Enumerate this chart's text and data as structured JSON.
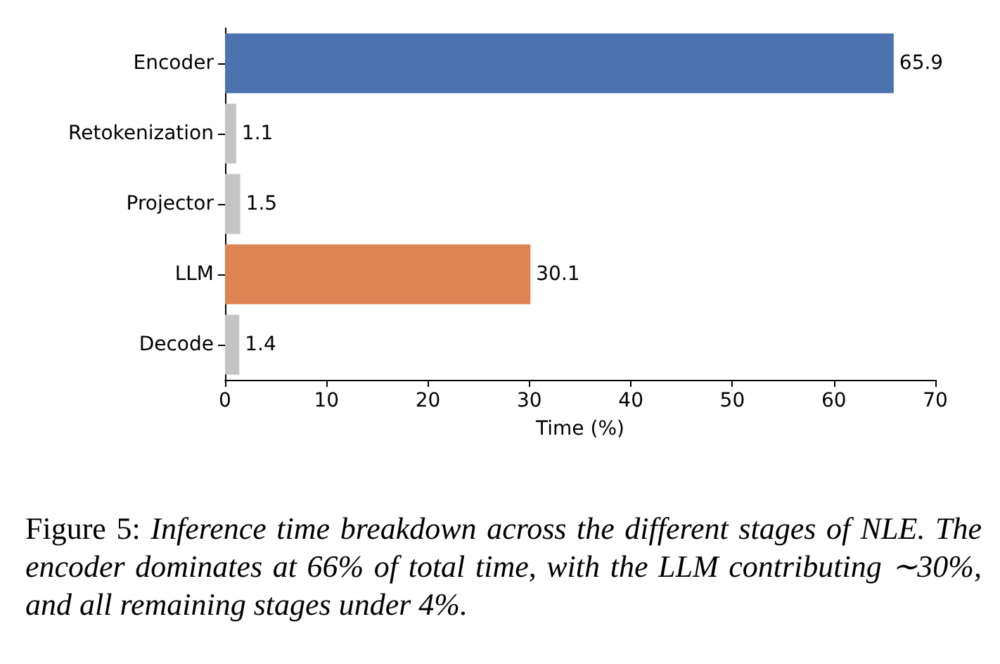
{
  "chart_data": {
    "type": "bar",
    "orientation": "horizontal",
    "categories": [
      "Encoder",
      "Retokenization",
      "Projector",
      "LLM",
      "Decode"
    ],
    "values": [
      65.9,
      1.1,
      1.5,
      30.1,
      1.4
    ],
    "colors": [
      "#4c72b0",
      "#c4c4c4",
      "#c4c4c4",
      "#dd8452",
      "#c4c4c4"
    ],
    "xlim": [
      0,
      70
    ],
    "xticks": [
      0,
      10,
      20,
      30,
      40,
      50,
      60,
      70
    ],
    "xlabel": "Time (%)",
    "data_labels": true,
    "annotations": [
      "Figure 5: Inference time breakdown across the different stages of NLE. The encoder dominates at 66% of total time, with the LLM contributing ∼30%, and all remaining stages under 4%."
    ]
  }
}
